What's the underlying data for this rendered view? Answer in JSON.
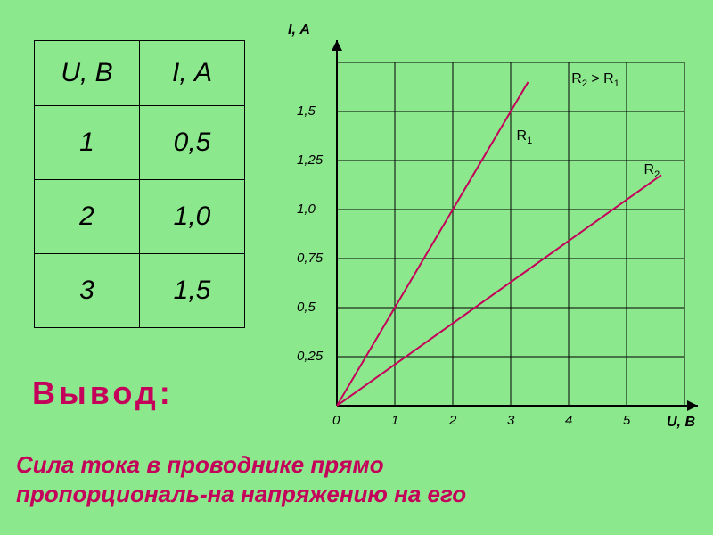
{
  "table": {
    "col1_header": "U, В",
    "col2_header": "I, А",
    "rows": [
      {
        "u": "1",
        "i": "0,5"
      },
      {
        "u": "2",
        "i": "1,0"
      },
      {
        "u": "3",
        "i": "1,5"
      }
    ]
  },
  "vyvod_label": "Вывод:",
  "conclusion_line1": "Сила тока в проводнике прямо",
  "conclusion_line2": "пропорциональ-на напряжению на его",
  "chart": {
    "type": "line",
    "background_color": "#8ce88c",
    "grid_color": "#000000",
    "axis_color": "#000000",
    "line_color": "#c4005a",
    "line_width": 2,
    "y_title": "I, А",
    "x_title": "U, В",
    "y_ticks": [
      "0,25",
      "0,5",
      "0,75",
      "1,0",
      "1,25",
      "1,5"
    ],
    "x_ticks": [
      "1",
      "2",
      "3",
      "4",
      "5"
    ],
    "zero_label": "0",
    "comparison": "R₂ > R₁",
    "series": [
      {
        "name": "R1",
        "label_html": "R<span class='sub'>1</span>",
        "slope_per_unit": 0.5,
        "x_end": 3.3
      },
      {
        "name": "R2",
        "label_html": "R<span class='sub'>2</span>",
        "slope_per_unit": 0.21,
        "x_end": 5.6
      }
    ],
    "grid_x_count": 6,
    "grid_y_count": 7,
    "tick_fontsize": 15,
    "title_fontsize": 16
  },
  "colors": {
    "page_bg": "#8ce88c",
    "accent": "#c4005a",
    "text": "#000000"
  }
}
